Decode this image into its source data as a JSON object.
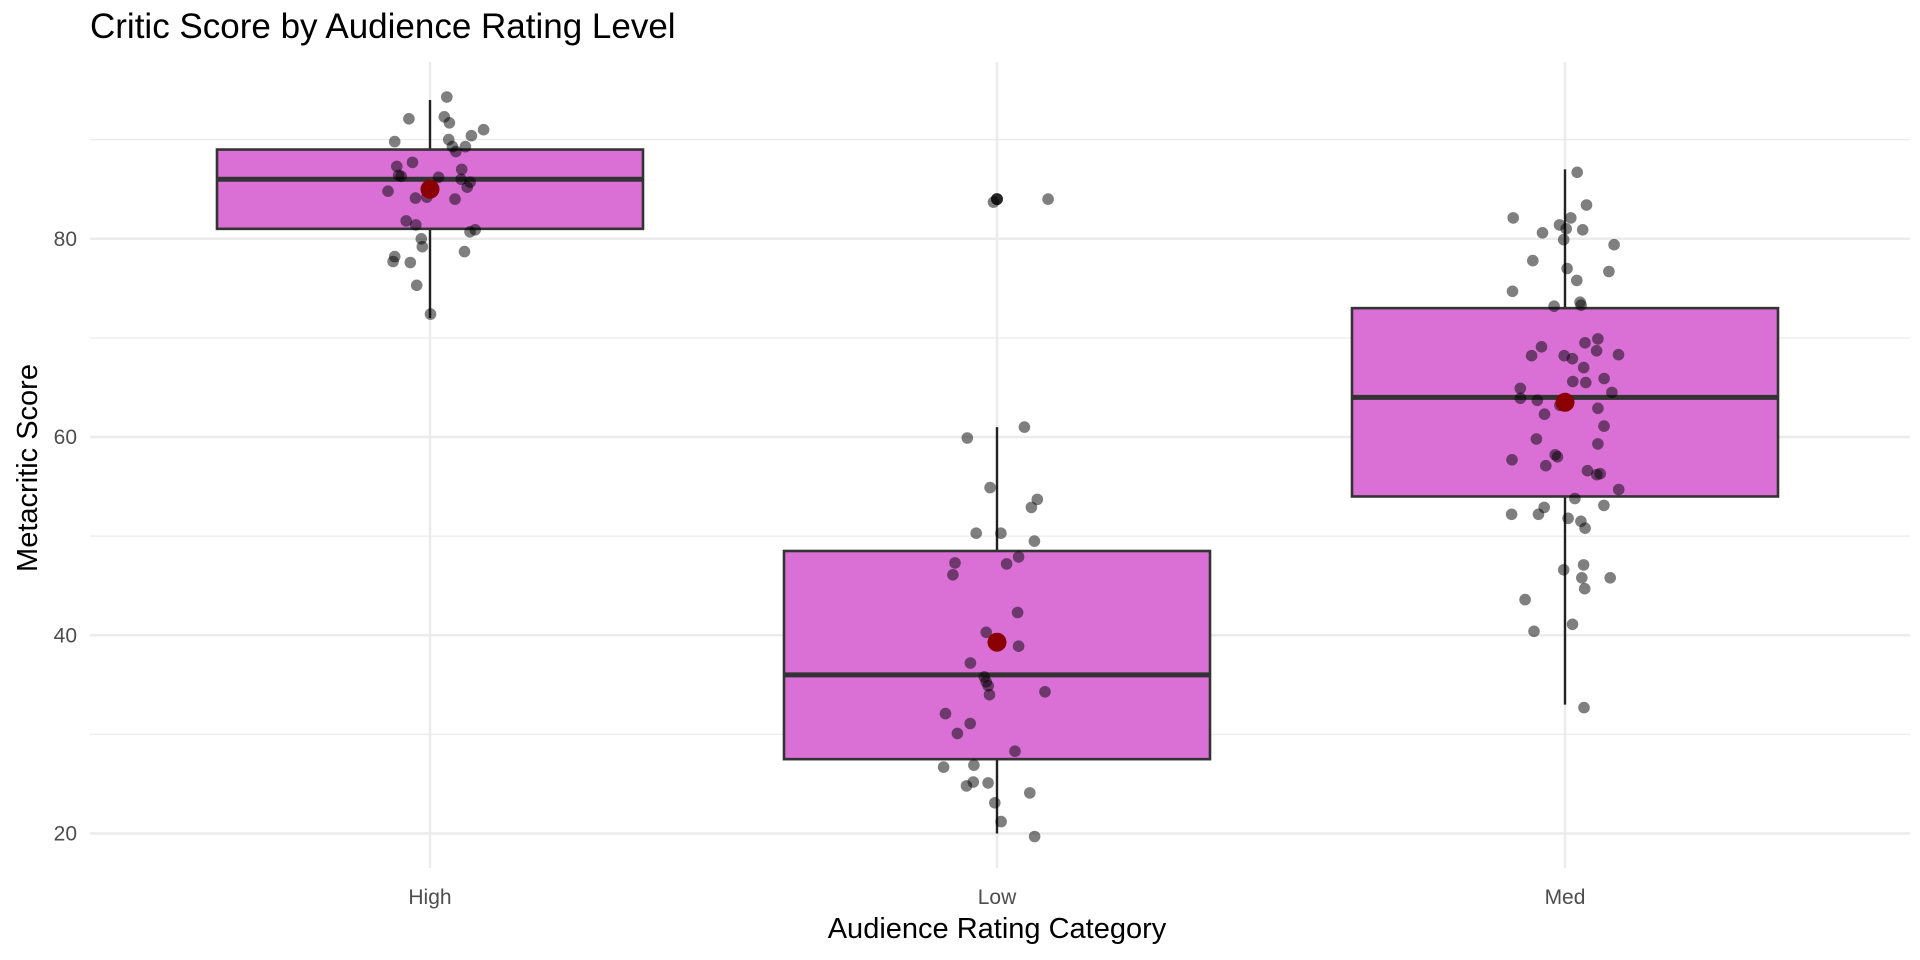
{
  "chart_data": {
    "type": "box",
    "title": "Critic Score by Audience Rating Level",
    "xlabel": "Audience Rating Category",
    "ylabel": "Metacritic Score",
    "ylim": [
      17,
      97
    ],
    "y_ticks": [
      20,
      40,
      60,
      80
    ],
    "categories": [
      "High",
      "Low",
      "Med"
    ],
    "grid": true,
    "colors": {
      "box_fill": "#da70d6",
      "box_outline": "#333333",
      "mean_point": "#8b0000",
      "jitter_point": "#000000",
      "grid": "#ebebeb"
    },
    "boxes": [
      {
        "category": "High",
        "whisker_low": 72,
        "q1": 81,
        "median": 86,
        "q3": 89,
        "whisker_high": 94,
        "mean": 85
      },
      {
        "category": "Low",
        "whisker_low": 20,
        "q1": 27.5,
        "median": 36,
        "q3": 48.5,
        "whisker_high": 61,
        "mean": 39.3
      },
      {
        "category": "Med",
        "whisker_low": 33,
        "q1": 54,
        "median": 64,
        "q3": 73,
        "whisker_high": 87,
        "mean": 63.5
      }
    ],
    "outliers": [
      {
        "category": "Low",
        "value": 84
      }
    ],
    "points": [
      {
        "category": "High",
        "values": [
          94.3,
          92.1,
          92.3,
          91.0,
          91.7,
          90.0,
          89.8,
          90.4,
          89.3,
          89.3,
          88.8,
          87.7,
          87.0,
          87.3,
          86.2,
          86.3,
          86.4,
          86.0,
          85.7,
          85.2,
          84.8,
          84.2,
          84.0,
          84.1,
          81.8,
          81.4,
          80.9,
          80.7,
          80.0,
          79.2,
          78.7,
          78.2,
          77.7,
          77.6,
          75.3,
          72.4
        ]
      },
      {
        "category": "Low",
        "values": [
          84.0,
          83.7,
          61.0,
          59.9,
          54.9,
          53.7,
          52.9,
          50.3,
          50.3,
          49.5,
          47.9,
          47.3,
          47.2,
          46.1,
          42.3,
          40.3,
          38.9,
          37.2,
          35.8,
          35.3,
          34.9,
          34.3,
          34.0,
          32.1,
          31.1,
          30.1,
          28.3,
          26.7,
          26.9,
          25.2,
          25.1,
          24.8,
          24.1,
          23.1,
          21.2,
          19.7
        ]
      },
      {
        "category": "Med",
        "values": [
          86.7,
          83.4,
          82.1,
          82.1,
          81.4,
          81.0,
          80.9,
          80.6,
          79.9,
          79.4,
          77.8,
          77.0,
          76.7,
          75.8,
          74.7,
          73.6,
          73.3,
          73.2,
          69.9,
          69.5,
          69.1,
          68.7,
          68.3,
          68.2,
          68.2,
          67.9,
          67.0,
          65.9,
          65.6,
          65.5,
          64.9,
          64.5,
          63.9,
          63.7,
          63.2,
          62.9,
          62.3,
          61.1,
          59.8,
          59.3,
          58.2,
          58.0,
          57.7,
          57.1,
          56.6,
          56.3,
          56.2,
          54.7,
          53.8,
          53.1,
          52.9,
          52.2,
          52.2,
          51.8,
          51.5,
          50.8,
          47.1,
          46.6,
          45.8,
          45.8,
          44.7,
          43.6,
          41.1,
          40.4,
          32.7
        ]
      }
    ]
  }
}
